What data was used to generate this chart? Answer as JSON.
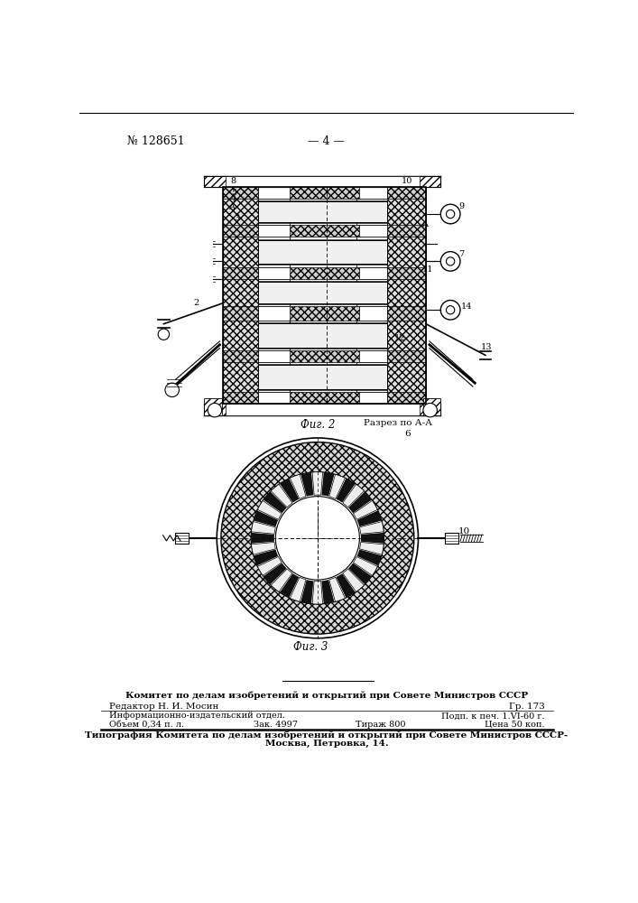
{
  "page_number": "№ 128651",
  "page_label": "— 4 —",
  "fig2_label": "Фиг. 2",
  "fig3_label": "Фиг. 3",
  "section_label": "Разрез по А-А",
  "footer_line1": "Комитет по делам изобретений и открытий при Совете Министров СССР",
  "footer_line2": "Редактор Н. И. Мосин",
  "footer_line2_right": "Гр. 173",
  "footer_line3": "Информационно-издательский отдел.",
  "footer_line3_right": "Подп. к печ. 1.VI-60 г.",
  "footer_line4_left": "Объем 0,34 п. л.",
  "footer_line4_mid": "Зак. 4997",
  "footer_line4_mid2": "Тираж 800",
  "footer_line4_right": "Цена 50 коп.",
  "footer_bold": "Типография Комитета по делам изобретений и открытий при Совете Министров СССР-",
  "footer_bold2": "Москва, Петровка, 14.",
  "bg_color": "#ffffff"
}
